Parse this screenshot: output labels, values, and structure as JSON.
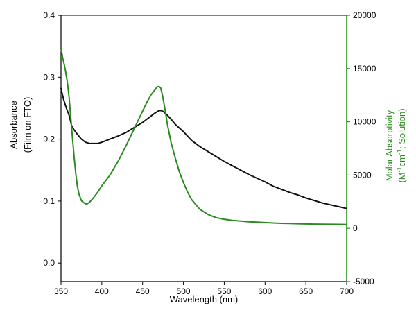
{
  "chart_data": {
    "type": "line",
    "title": "",
    "xlabel": "Wavelength (nm)",
    "xlim": [
      350,
      700
    ],
    "x_ticks": [
      350,
      400,
      450,
      500,
      550,
      600,
      650,
      700
    ],
    "left_axis": {
      "label_line1": "Absorbance",
      "label_line2": "(Film on FTO)",
      "ylim": [
        -0.03,
        0.4
      ],
      "ticks": [
        0.0,
        0.1,
        0.2,
        0.3,
        0.4
      ],
      "tick_labels": [
        "0.0",
        "0.1",
        "0.2",
        "0.3",
        "0.4"
      ],
      "color": "#000000"
    },
    "right_axis": {
      "label_line1": "Molar Absorptivity",
      "label_line2_parts": [
        "(M",
        "-1",
        "cm",
        "-1",
        "; Solution)"
      ],
      "ylim": [
        -5000,
        20000
      ],
      "ticks": [
        -5000,
        0,
        5000,
        10000,
        15000,
        20000
      ],
      "tick_labels": [
        "-5000",
        "0",
        "5000",
        "10000",
        "15000",
        "20000"
      ],
      "color": "#2a8a1f"
    },
    "series": [
      {
        "name": "Absorbance (Film on FTO)",
        "axis": "left",
        "color": "#111111",
        "x": [
          350,
          353,
          356,
          360,
          363,
          366,
          370,
          375,
          380,
          385,
          390,
          395,
          400,
          410,
          420,
          430,
          440,
          450,
          455,
          460,
          465,
          470,
          473,
          476,
          480,
          485,
          490,
          500,
          510,
          520,
          530,
          540,
          550,
          560,
          570,
          580,
          590,
          600,
          610,
          620,
          630,
          640,
          650,
          660,
          670,
          680,
          690,
          700
        ],
        "y": [
          0.282,
          0.265,
          0.252,
          0.238,
          0.222,
          0.215,
          0.208,
          0.2,
          0.195,
          0.193,
          0.193,
          0.193,
          0.195,
          0.2,
          0.205,
          0.211,
          0.219,
          0.227,
          0.232,
          0.237,
          0.242,
          0.246,
          0.246,
          0.244,
          0.239,
          0.232,
          0.224,
          0.212,
          0.198,
          0.188,
          0.18,
          0.172,
          0.164,
          0.157,
          0.15,
          0.143,
          0.137,
          0.131,
          0.124,
          0.119,
          0.114,
          0.11,
          0.105,
          0.101,
          0.097,
          0.094,
          0.091,
          0.088
        ]
      },
      {
        "name": "Molar Absorptivity (Solution)",
        "axis": "right",
        "color": "#2a8a1f",
        "x": [
          350,
          352,
          355,
          358,
          360,
          362,
          364,
          366,
          368,
          370,
          372,
          375,
          378,
          380,
          382,
          385,
          390,
          395,
          400,
          410,
          420,
          430,
          440,
          450,
          455,
          460,
          465,
          468,
          470,
          472,
          474,
          476,
          478,
          480,
          485,
          490,
          495,
          500,
          505,
          510,
          520,
          530,
          540,
          550,
          560,
          570,
          580,
          590,
          600,
          610,
          620,
          630,
          640,
          650,
          660,
          670,
          680,
          690,
          700
        ],
        "y": [
          16900,
          16000,
          15000,
          13600,
          12200,
          10400,
          8500,
          6800,
          5200,
          4000,
          3200,
          2600,
          2400,
          2300,
          2300,
          2450,
          2900,
          3400,
          4000,
          5000,
          6300,
          7800,
          9400,
          11000,
          11800,
          12500,
          13000,
          13300,
          13300,
          13200,
          12600,
          11800,
          10900,
          9900,
          8000,
          6600,
          5300,
          4300,
          3400,
          2700,
          1800,
          1300,
          1000,
          850,
          750,
          680,
          620,
          580,
          540,
          500,
          470,
          450,
          430,
          410,
          400,
          390,
          380,
          370,
          360
        ]
      }
    ]
  }
}
